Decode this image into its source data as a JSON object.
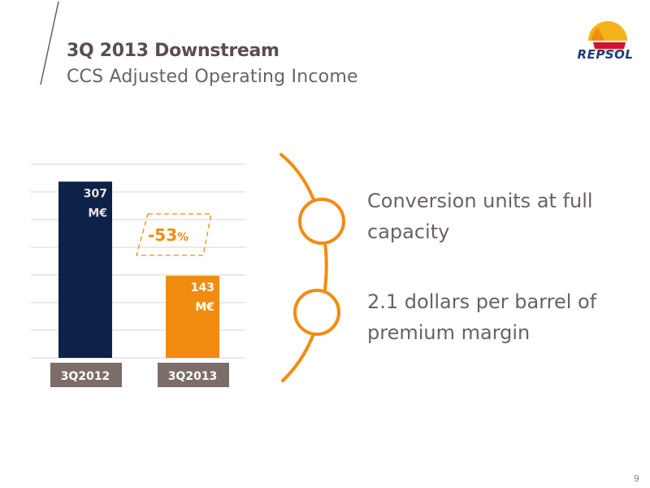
{
  "header": {
    "title": "3Q 2013 Downstream",
    "subtitle": "CCS Adjusted Operating Income"
  },
  "logo": {
    "text": "REPSOL"
  },
  "chart_data": {
    "type": "bar",
    "categories": [
      "3Q2012",
      "3Q2013"
    ],
    "values": [
      307,
      143
    ],
    "value_labels": [
      "307",
      "143"
    ],
    "unit": "M€",
    "ylim": [
      0,
      340
    ],
    "grid": true,
    "bar_colors": [
      "#0c2248",
      "#f28c10"
    ],
    "change_label": "-53",
    "change_suffix": "%"
  },
  "messages": [
    {
      "line1": "Conversion units at full",
      "line2": "capacity"
    },
    {
      "line1": "2.1 dollars per barrel of",
      "line2": "premium margin"
    }
  ],
  "footer": {
    "page": "9"
  },
  "colors": {
    "accent": "#f28c10",
    "navy": "#0c2248",
    "title_text": "#5a4f4c",
    "category_box": "#7c6d69"
  }
}
